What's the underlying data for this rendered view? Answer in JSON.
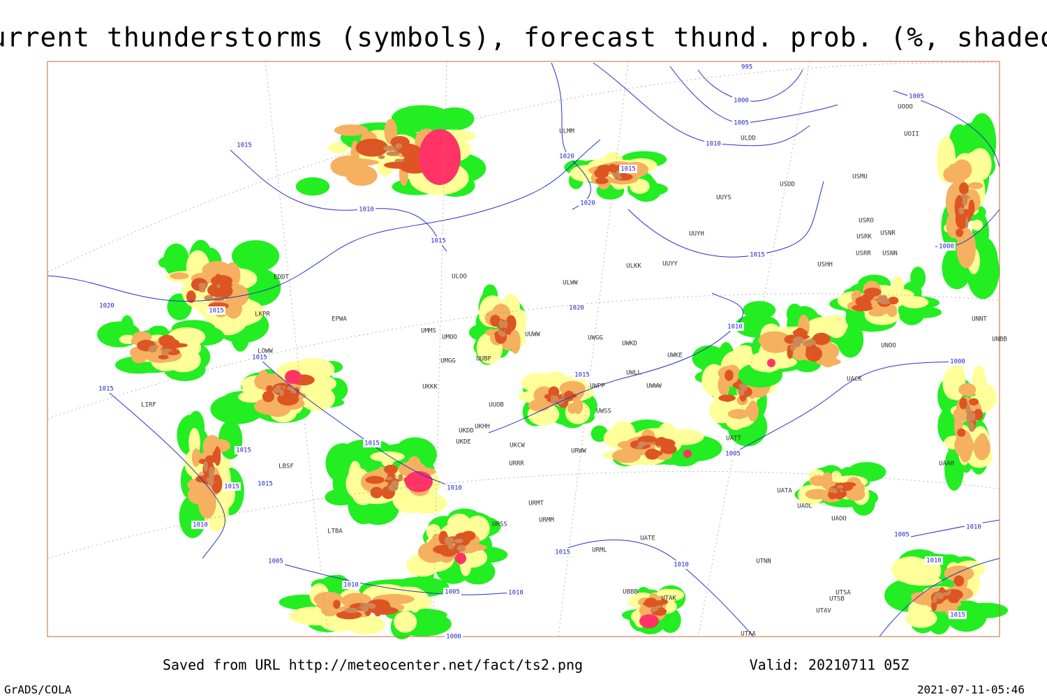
{
  "header": {
    "title": "Current thunderstorms (symbols), forecast thund. prob. (%, shaded)"
  },
  "isobar_labels": [
    "995",
    "1000",
    "1005",
    "1010",
    "1005",
    "1015",
    "1020",
    "1015",
    "1020",
    "1010",
    "1015",
    "1015",
    "1000",
    "1020",
    "1015",
    "1020",
    "1010",
    "1015",
    "1015",
    "1015",
    "1000",
    "1015",
    "1015",
    "1005",
    "1010",
    "1015",
    "1015",
    "1010",
    "1010",
    "1005",
    "1015",
    "1005",
    "1010",
    "1010",
    "1010",
    "1005",
    "1010",
    "1015",
    "1000"
  ],
  "stations": [
    "ULMM",
    "ULDD",
    "USDD",
    "USMU",
    "UUYS",
    "UUYH",
    "UUYY",
    "ULKK",
    "USRO",
    "USRK",
    "USNR",
    "USRR",
    "USNN",
    "USHH",
    "UOOO",
    "UOII",
    "ULWW",
    "ULOO",
    "EPWA",
    "LKPR",
    "UMMS",
    "UMOO",
    "UUWW",
    "UWGG",
    "UWKD",
    "UWKE",
    "UMGG",
    "UUBP",
    "UKKK",
    "UWPP",
    "UWLL",
    "UWWW",
    "UUOB",
    "UWSS",
    "UKHH",
    "UKDD",
    "UKDE",
    "UKCW",
    "URRR",
    "URWW",
    "URMT",
    "URMM",
    "URSS",
    "URML",
    "UATT",
    "UATE",
    "UATA",
    "UAOL",
    "UAOO",
    "UTNN",
    "UTSA",
    "UTSB",
    "UTAV",
    "UTAK",
    "UBBB",
    "UTAA",
    "UNNT",
    "UNBB",
    "UNOO",
    "UACK",
    "UAAH",
    "LIRF",
    "LBSF",
    "LTBA",
    "EDDT",
    "LOWW"
  ],
  "footer": {
    "saved": "Saved from URL http://meteocenter.net/fact/ts2.png",
    "valid": "Valid: 20210711 05Z",
    "software": "GrADS/COLA",
    "timestamp": "2021-07-11-05:46"
  }
}
